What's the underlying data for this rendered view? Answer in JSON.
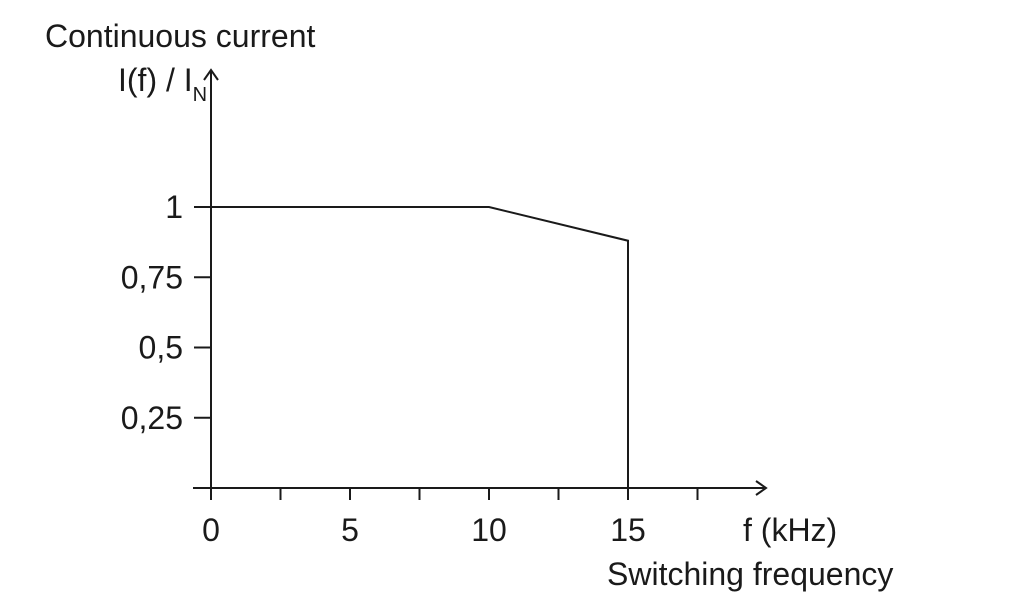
{
  "chart_data": {
    "type": "line",
    "ylabel_title": "Continuous current",
    "ylabel_main": "I(f) / I",
    "ylabel_sub": "N",
    "xlabel_unit": "f (kHz)",
    "xlabel_title": "Switching frequency",
    "xlim": [
      0,
      18
    ],
    "ylim": [
      0,
      1.4
    ],
    "x_ticks": [
      0,
      2.5,
      5,
      7.5,
      10,
      12.5,
      15,
      17.5
    ],
    "x_tick_labels": [
      {
        "value": 0,
        "label": "0"
      },
      {
        "value": 5,
        "label": "5"
      },
      {
        "value": 10,
        "label": "10"
      },
      {
        "value": 15,
        "label": "15"
      }
    ],
    "y_ticks": [
      {
        "value": 1,
        "label": "1"
      },
      {
        "value": 0.75,
        "label": "0,75"
      },
      {
        "value": 0.5,
        "label": "0,5"
      },
      {
        "value": 0.25,
        "label": "0,25"
      }
    ],
    "series": [
      {
        "x": [
          0,
          10,
          15,
          15
        ],
        "y": [
          1,
          1,
          0.88,
          0
        ]
      }
    ],
    "grid": false,
    "colors": {
      "line": "#1a1a1a",
      "background": "#ffffff"
    }
  }
}
